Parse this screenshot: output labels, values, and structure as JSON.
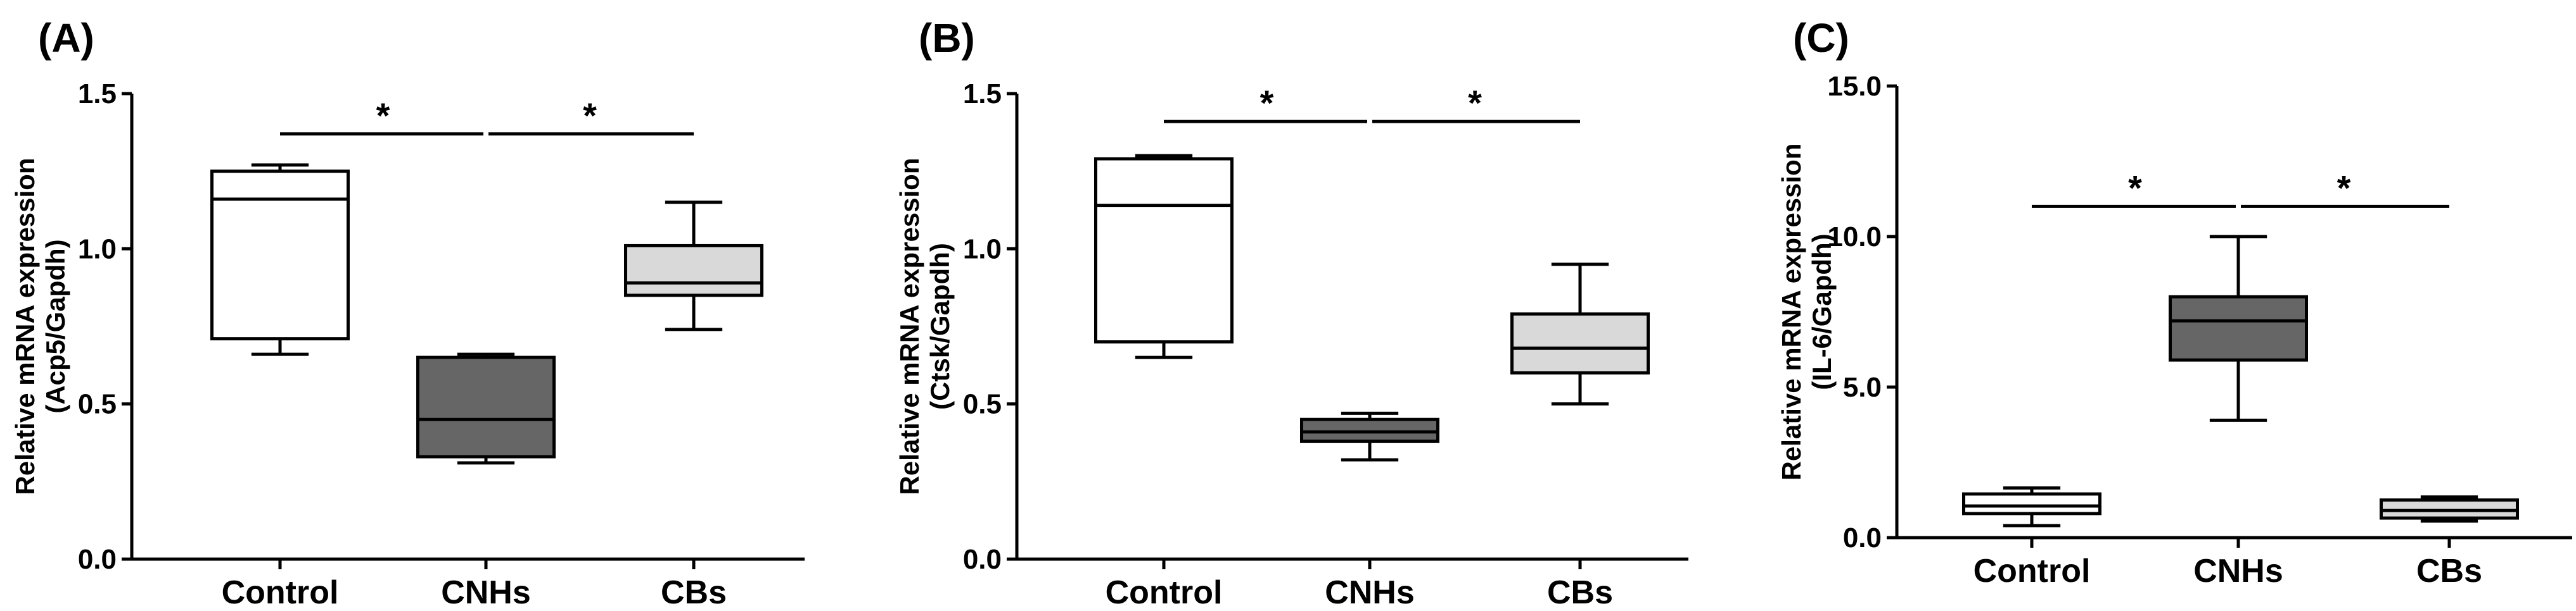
{
  "colors": {
    "control": "#ffffff",
    "cnhs": "#666666",
    "cbs": "#d9d9d9",
    "stroke": "#000000"
  },
  "chart_data": [
    {
      "type": "box",
      "panel_label": "(A)",
      "ylabel_line1": "Relative mRNA expression",
      "ylabel_line2": "(Acp5/Gapdh)",
      "ylim": [
        0,
        1.5
      ],
      "yticks": [
        "0.0",
        "0.5",
        "1.0",
        "1.5"
      ],
      "ytick_values": [
        0,
        0.5,
        1.0,
        1.5
      ],
      "categories": [
        "Control",
        "CNHs",
        "CBs"
      ],
      "boxes": [
        {
          "category": "Control",
          "min": 0.66,
          "q1": 0.71,
          "median": 1.16,
          "q3": 1.25,
          "max": 1.27
        },
        {
          "category": "CNHs",
          "min": 0.31,
          "q1": 0.33,
          "median": 0.45,
          "q3": 0.65,
          "max": 0.66
        },
        {
          "category": "CBs",
          "min": 0.74,
          "q1": 0.85,
          "median": 0.89,
          "q3": 1.01,
          "max": 1.15
        }
      ],
      "significance": [
        {
          "from": "Control",
          "to": "CNHs",
          "y": 1.37,
          "label": "*"
        },
        {
          "from": "CNHs",
          "to": "CBs",
          "y": 1.37,
          "label": "*"
        }
      ]
    },
    {
      "type": "box",
      "panel_label": "(B)",
      "ylabel_line1": "Relative mRNA expression",
      "ylabel_line2": "(Ctsk/Gapdh)",
      "ylim": [
        0,
        1.5
      ],
      "yticks": [
        "0.0",
        "0.5",
        "1.0",
        "1.5"
      ],
      "ytick_values": [
        0,
        0.5,
        1.0,
        1.5
      ],
      "categories": [
        "Control",
        "CNHs",
        "CBs"
      ],
      "boxes": [
        {
          "category": "Control",
          "min": 0.65,
          "q1": 0.7,
          "median": 1.14,
          "q3": 1.29,
          "max": 1.3
        },
        {
          "category": "CNHs",
          "min": 0.32,
          "q1": 0.38,
          "median": 0.41,
          "q3": 0.45,
          "max": 0.47
        },
        {
          "category": "CBs",
          "min": 0.5,
          "q1": 0.6,
          "median": 0.68,
          "q3": 0.79,
          "max": 0.95
        }
      ],
      "significance": [
        {
          "from": "Control",
          "to": "CNHs",
          "y": 1.41,
          "label": "*"
        },
        {
          "from": "CNHs",
          "to": "CBs",
          "y": 1.41,
          "label": "*"
        }
      ]
    },
    {
      "type": "box",
      "panel_label": "(C)",
      "ylabel_line1": "Relative mRNA expression",
      "ylabel_line2": "(IL-6/Gapdh)",
      "ylim": [
        0,
        15
      ],
      "yticks": [
        "0.0",
        "5.0",
        "10.0",
        "15.0"
      ],
      "ytick_values": [
        0,
        5,
        10,
        15
      ],
      "categories": [
        "Control",
        "CNHs",
        "CBs"
      ],
      "boxes": [
        {
          "category": "Control",
          "min": 0.4,
          "q1": 0.8,
          "median": 1.05,
          "q3": 1.45,
          "max": 1.65
        },
        {
          "category": "CNHs",
          "min": 3.9,
          "q1": 5.9,
          "median": 7.2,
          "q3": 8.0,
          "max": 10.0
        },
        {
          "category": "CBs",
          "min": 0.55,
          "q1": 0.65,
          "median": 0.9,
          "q3": 1.25,
          "max": 1.35
        }
      ],
      "significance": [
        {
          "from": "Control",
          "to": "CNHs",
          "y": 11.0,
          "label": "*"
        },
        {
          "from": "CNHs",
          "to": "CBs",
          "y": 11.0,
          "label": "*"
        }
      ]
    }
  ]
}
